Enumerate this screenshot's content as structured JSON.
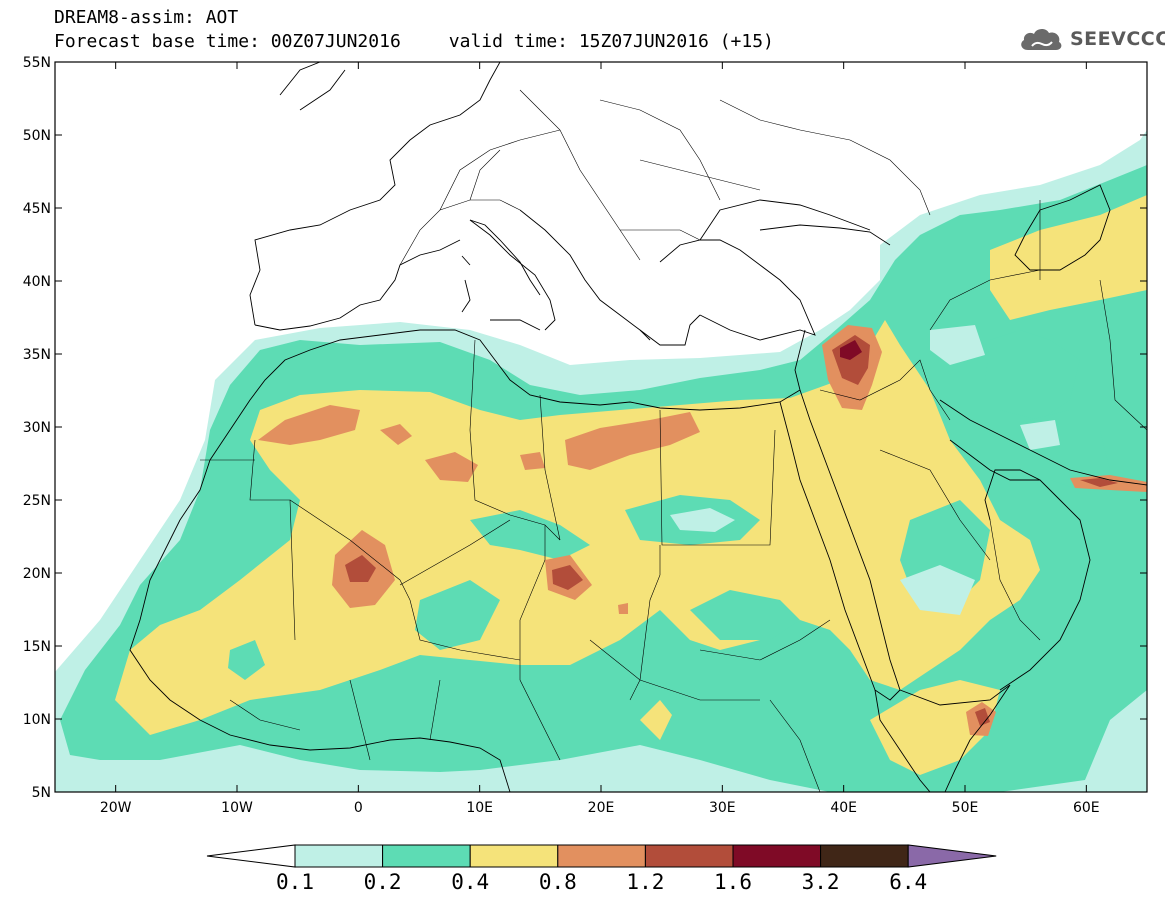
{
  "header": {
    "title_line1": "DREAM8-assim: AOT",
    "base_time": "Forecast base time: 00Z07JUN2016",
    "valid_time": "valid time: 15Z07JUN2016 (+15)"
  },
  "logo": {
    "text": "SEEVCCC",
    "icon": "cloud-icon"
  },
  "map": {
    "lon_range": [
      -25,
      65
    ],
    "lat_range": [
      5,
      55
    ],
    "lat_ticks": [
      "5N",
      "10N",
      "15N",
      "20N",
      "25N",
      "30N",
      "35N",
      "40N",
      "45N",
      "50N",
      "55N"
    ],
    "lon_ticks": [
      "20W",
      "10W",
      "0",
      "10E",
      "20E",
      "30E",
      "40E",
      "50E",
      "60E"
    ]
  },
  "colorbar": {
    "labels": [
      "0.1",
      "0.2",
      "0.4",
      "0.8",
      "1.2",
      "1.6",
      "3.2",
      "6.4"
    ],
    "colors": [
      "#bff0e6",
      "#5ddcb4",
      "#f5e37a",
      "#e2905f",
      "#b24d3a",
      "#7f0a26",
      "#402617"
    ],
    "under_color": "#ffffff",
    "over_color": "#8a69a8"
  }
}
